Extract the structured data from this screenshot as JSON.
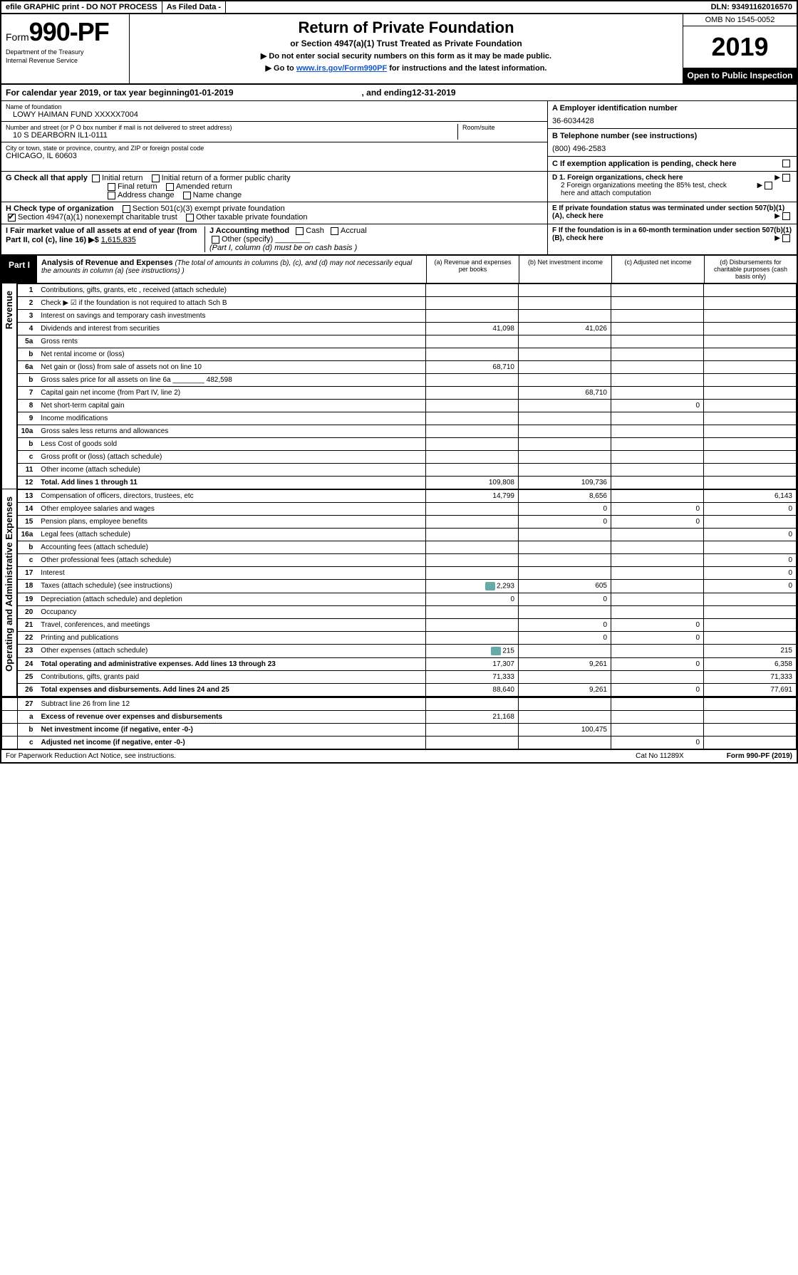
{
  "topbar": {
    "efile": "efile GRAPHIC print - DO NOT PROCESS",
    "asfiled": "As Filed Data -",
    "dln_lbl": "DLN:",
    "dln": "93491162016570"
  },
  "header": {
    "form_word": "Form",
    "form_no": "990-PF",
    "dept1": "Department of the Treasury",
    "dept2": "Internal Revenue Service",
    "title": "Return of Private Foundation",
    "subtitle": "or Section 4947(a)(1) Trust Treated as Private Foundation",
    "note1": "▶ Do not enter social security numbers on this form as it may be made public.",
    "note2_pre": "▶ Go to ",
    "note2_link": "www.irs.gov/Form990PF",
    "note2_post": " for instructions and the latest information.",
    "omb": "OMB No 1545-0052",
    "year": "2019",
    "open": "Open to Public Inspection"
  },
  "cal": {
    "pre": "For calendar year 2019, or tax year beginning ",
    "begin": "01-01-2019",
    "mid": ", and ending ",
    "end": "12-31-2019"
  },
  "info": {
    "name_lbl": "Name of foundation",
    "name": "LOWY HAIMAN FUND XXXXX7004",
    "addr_lbl": "Number and street (or P O  box number if mail is not delivered to street address)",
    "addr": "10 S DEARBORN IL1-0111",
    "room_lbl": "Room/suite",
    "city_lbl": "City or town, state or province, country, and ZIP or foreign postal code",
    "city": "CHICAGO, IL  60603",
    "a_lbl": "A Employer identification number",
    "a_val": "36-6034428",
    "b_lbl": "B Telephone number (see instructions)",
    "b_val": "(800) 496-2583",
    "c_lbl": "C If exemption application is pending, check here"
  },
  "g": {
    "lbl": "G Check all that apply",
    "o1": "Initial return",
    "o2": "Initial return of a former public charity",
    "o3": "Final return",
    "o4": "Amended return",
    "o5": "Address change",
    "o6": "Name change",
    "d1": "D 1. Foreign organizations, check here",
    "d2": "2 Foreign organizations meeting the 85% test, check here and attach computation",
    "e": "E  If private foundation status was terminated under section 507(b)(1)(A), check here"
  },
  "h": {
    "lbl": "H Check type of organization",
    "o1": "Section 501(c)(3) exempt private foundation",
    "o2": "Section 4947(a)(1) nonexempt charitable trust",
    "o3": "Other taxable private foundation"
  },
  "i": {
    "lbl": "I Fair market value of all assets at end of year (from Part II, col (c), line 16) ▶$ ",
    "val": "1,615,835"
  },
  "j": {
    "lbl": "J Accounting method",
    "o1": "Cash",
    "o2": "Accrual",
    "o3": "Other (specify)",
    "note": "(Part I, column (d) must be on cash basis )"
  },
  "f": {
    "lbl": "F  If the foundation is in a 60-month termination under section 507(b)(1)(B), check here"
  },
  "part1": {
    "lbl": "Part I",
    "title": "Analysis of Revenue and Expenses",
    "note": "(The total of amounts in columns (b), (c), and (d) may not necessarily equal the amounts in column (a) (see instructions) )",
    "col_a": "(a) Revenue and expenses per books",
    "col_b": "(b) Net investment income",
    "col_c": "(c) Adjusted net income",
    "col_d": "(d) Disbursements for charitable purposes (cash basis only)"
  },
  "sections": {
    "revenue": "Revenue",
    "expenses": "Operating and Administrative Expenses"
  },
  "rows": [
    {
      "n": "1",
      "d": "Contributions, gifts, grants, etc , received (attach schedule)"
    },
    {
      "n": "2",
      "d": "Check ▶ ☑ if the foundation is not required to attach Sch B"
    },
    {
      "n": "3",
      "d": "Interest on savings and temporary cash investments"
    },
    {
      "n": "4",
      "d": "Dividends and interest from securities",
      "a": "41,098",
      "b": "41,026"
    },
    {
      "n": "5a",
      "d": "Gross rents"
    },
    {
      "n": "b",
      "d": "Net rental income or (loss)"
    },
    {
      "n": "6a",
      "d": "Net gain or (loss) from sale of assets not on line 10",
      "a": "68,710"
    },
    {
      "n": "b",
      "d": "Gross sales price for all assets on line 6a ________ 482,598"
    },
    {
      "n": "7",
      "d": "Capital gain net income (from Part IV, line 2)",
      "b": "68,710"
    },
    {
      "n": "8",
      "d": "Net short-term capital gain",
      "c": "0"
    },
    {
      "n": "9",
      "d": "Income modifications"
    },
    {
      "n": "10a",
      "d": "Gross sales less returns and allowances"
    },
    {
      "n": "b",
      "d": "Less  Cost of goods sold"
    },
    {
      "n": "c",
      "d": "Gross profit or (loss) (attach schedule)"
    },
    {
      "n": "11",
      "d": "Other income (attach schedule)"
    },
    {
      "n": "12",
      "d": "Total. Add lines 1 through 11",
      "bold": true,
      "a": "109,808",
      "b": "109,736"
    }
  ],
  "exp_rows": [
    {
      "n": "13",
      "d": "Compensation of officers, directors, trustees, etc",
      "a": "14,799",
      "b": "8,656",
      "dd": "6,143"
    },
    {
      "n": "14",
      "d": "Other employee salaries and wages",
      "b": "0",
      "c": "0",
      "dd": "0"
    },
    {
      "n": "15",
      "d": "Pension plans, employee benefits",
      "b": "0",
      "c": "0"
    },
    {
      "n": "16a",
      "d": "Legal fees (attach schedule)",
      "dd": "0"
    },
    {
      "n": "b",
      "d": "Accounting fees (attach schedule)"
    },
    {
      "n": "c",
      "d": "Other professional fees (attach schedule)",
      "dd": "0"
    },
    {
      "n": "17",
      "d": "Interest",
      "dd": "0"
    },
    {
      "n": "18",
      "d": "Taxes (attach schedule) (see instructions)",
      "icon": true,
      "a": "2,293",
      "b": "605",
      "dd": "0"
    },
    {
      "n": "19",
      "d": "Depreciation (attach schedule) and depletion",
      "a": "0",
      "b": "0"
    },
    {
      "n": "20",
      "d": "Occupancy"
    },
    {
      "n": "21",
      "d": "Travel, conferences, and meetings",
      "b": "0",
      "c": "0"
    },
    {
      "n": "22",
      "d": "Printing and publications",
      "b": "0",
      "c": "0"
    },
    {
      "n": "23",
      "d": "Other expenses (attach schedule)",
      "icon": true,
      "a": "215",
      "dd": "215"
    },
    {
      "n": "24",
      "d": "Total operating and administrative expenses. Add lines 13 through 23",
      "bold": true,
      "a": "17,307",
      "b": "9,261",
      "c": "0",
      "dd": "6,358"
    },
    {
      "n": "25",
      "d": "Contributions, gifts, grants paid",
      "a": "71,333",
      "dd": "71,333"
    },
    {
      "n": "26",
      "d": "Total expenses and disbursements. Add lines 24 and 25",
      "bold": true,
      "a": "88,640",
      "b": "9,261",
      "c": "0",
      "dd": "77,691"
    }
  ],
  "bottom_rows": [
    {
      "n": "27",
      "d": "Subtract line 26 from line 12"
    },
    {
      "n": "a",
      "d": "Excess of revenue over expenses and disbursements",
      "bold": true,
      "a": "21,168"
    },
    {
      "n": "b",
      "d": "Net investment income (if negative, enter -0-)",
      "bold": true,
      "b": "100,475"
    },
    {
      "n": "c",
      "d": "Adjusted net income (if negative, enter -0-)",
      "bold": true,
      "c": "0"
    }
  ],
  "footer": {
    "left": "For Paperwork Reduction Act Notice, see instructions.",
    "mid": "Cat No 11289X",
    "right": "Form 990-PF (2019)"
  }
}
